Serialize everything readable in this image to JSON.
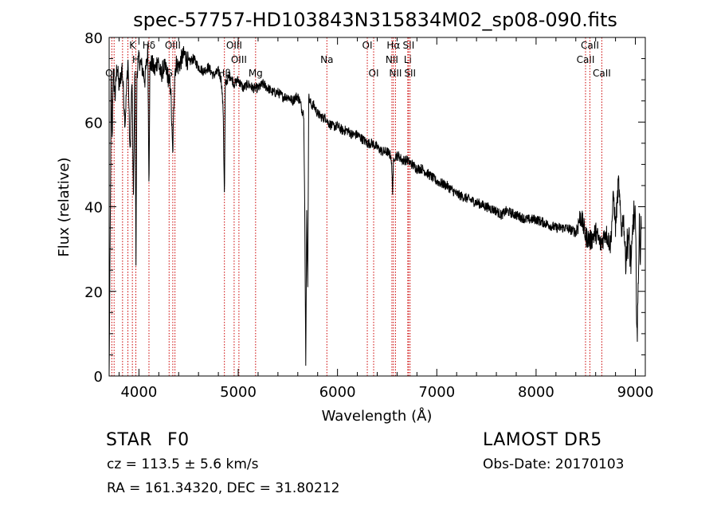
{
  "chart_data": {
    "type": "line",
    "title": "spec-57757-HD103843N315834M02_sp08-090.fits",
    "xlabel": "Wavelength (Å)",
    "ylabel": "Flux (relative)",
    "xlim": [
      3700,
      9100
    ],
    "ylim": [
      0,
      80
    ],
    "xticks": [
      4000,
      5000,
      6000,
      7000,
      8000,
      9000
    ],
    "yticks": [
      0,
      20,
      40,
      60,
      80
    ],
    "series": [
      {
        "values_note": "",
        "x": [
          3700,
          3710,
          3720,
          3730,
          3740,
          3760,
          3780,
          3800,
          3830,
          3860,
          3890,
          3910,
          3930,
          3945,
          3960,
          3970,
          3980,
          4000,
          4030,
          4060,
          4090,
          4101,
          4110,
          4130,
          4160,
          4190,
          4220,
          4250,
          4280,
          4300,
          4320,
          4340,
          4360,
          4380,
          4400,
          4430,
          4460,
          4500,
          4550,
          4600,
          4650,
          4700,
          4750,
          4800,
          4830,
          4850,
          4861,
          4870,
          4890,
          4920,
          4960,
          5000,
          5050,
          5100,
          5150,
          5200,
          5250,
          5300,
          5350,
          5400,
          5450,
          5500,
          5550,
          5580,
          5600,
          5620,
          5640,
          5660,
          5670,
          5680,
          5690,
          5700,
          5710,
          5720,
          5740,
          5760,
          5780,
          5800,
          5850,
          5890,
          5900,
          5950,
          6000,
          6050,
          6100,
          6150,
          6200,
          6250,
          6300,
          6350,
          6400,
          6450,
          6500,
          6540,
          6555,
          6563,
          6575,
          6590,
          6620,
          6650,
          6700,
          6750,
          6800,
          6850,
          6900,
          6950,
          7000,
          7100,
          7200,
          7300,
          7400,
          7500,
          7600,
          7650,
          7700,
          7800,
          7900,
          8000,
          8100,
          8200,
          8300,
          8400,
          8450,
          8500,
          8550,
          8600,
          8650,
          8700,
          8750,
          8780,
          8800,
          8830,
          8860,
          8880,
          8900,
          8930,
          8960,
          8980,
          9000,
          9010,
          9020,
          9030,
          9040,
          9050,
          9060
        ],
        "y": [
          0,
          30,
          70,
          55,
          72,
          66,
          74,
          68,
          73,
          60,
          75,
          52,
          70,
          42,
          74,
          27,
          72,
          75,
          73,
          70,
          77,
          45,
          73,
          74,
          72,
          75,
          71,
          73,
          72,
          70,
          68,
          52,
          72,
          74,
          73,
          75,
          76,
          74,
          75,
          73,
          72,
          73,
          71,
          72,
          70,
          62,
          41,
          69,
          70,
          71,
          69,
          70,
          68,
          69,
          68,
          68,
          69,
          68,
          67,
          67,
          66,
          66,
          65,
          66,
          66,
          65,
          63,
          62,
          40,
          2,
          40,
          20,
          66,
          65,
          64,
          64,
          63,
          62,
          61,
          61,
          60,
          59,
          59,
          58,
          58,
          57,
          57,
          56,
          55,
          55,
          54,
          53,
          53,
          52,
          44,
          50,
          52,
          52,
          52,
          51,
          51,
          50,
          49,
          49,
          48,
          47,
          46,
          45,
          43,
          42,
          41,
          40,
          39,
          38,
          39,
          38,
          37,
          37,
          36,
          35,
          35,
          34,
          38,
          33,
          32,
          34,
          31,
          34,
          31,
          43,
          35,
          46,
          34,
          38,
          28,
          33,
          26,
          38,
          36,
          20,
          8,
          25,
          36,
          30,
          35
        ]
      }
    ],
    "lines": [
      {
        "wl": 3727,
        "label": "OII",
        "row": 2
      },
      {
        "wl": 3750,
        "label": "",
        "row": 0
      },
      {
        "wl": 3835,
        "label": "",
        "row": 0
      },
      {
        "wl": 3889,
        "label": "",
        "row": 0
      },
      {
        "wl": 3934,
        "label": "K",
        "row": 0
      },
      {
        "wl": 3969,
        "label": "H",
        "row": 1
      },
      {
        "wl": 4101,
        "label": "Hδ",
        "row": 0
      },
      {
        "wl": 4304,
        "label": "G",
        "row": 2
      },
      {
        "wl": 4341,
        "label": "OIII",
        "row": 0
      },
      {
        "wl": 4363,
        "label": "",
        "row": 0
      },
      {
        "wl": 4861,
        "label": "Hβ",
        "row": 2
      },
      {
        "wl": 4959,
        "label": "OIII",
        "row": 0
      },
      {
        "wl": 5007,
        "label": "OIII",
        "row": 1
      },
      {
        "wl": 5175,
        "label": "Mg",
        "row": 2
      },
      {
        "wl": 5893,
        "label": "Na",
        "row": 1
      },
      {
        "wl": 6300,
        "label": "OI",
        "row": 0
      },
      {
        "wl": 6364,
        "label": "OI",
        "row": 2
      },
      {
        "wl": 6548,
        "label": "NII",
        "row": 1
      },
      {
        "wl": 6563,
        "label": "Hα",
        "row": 0
      },
      {
        "wl": 6584,
        "label": "NII",
        "row": 2
      },
      {
        "wl": 6708,
        "label": "Li",
        "row": 1
      },
      {
        "wl": 6716,
        "label": "SII",
        "row": 0
      },
      {
        "wl": 6731,
        "label": "SII",
        "row": 2
      },
      {
        "wl": 8498,
        "label": "CaII",
        "row": 1
      },
      {
        "wl": 8542,
        "label": "CaII",
        "row": 0
      },
      {
        "wl": 8662,
        "label": "CaII",
        "row": 2
      }
    ],
    "grid": false,
    "line_color": "#000000",
    "marker_color": "#cc0000"
  },
  "info": {
    "object_type": "STAR",
    "subclass": "F0",
    "survey": "LAMOST DR5",
    "cz": "cz = 113.5 ± 5.6 km/s",
    "obs_date": "Obs-Date: 20170103",
    "coords": "RA = 161.34320, DEC =  31.80212"
  }
}
